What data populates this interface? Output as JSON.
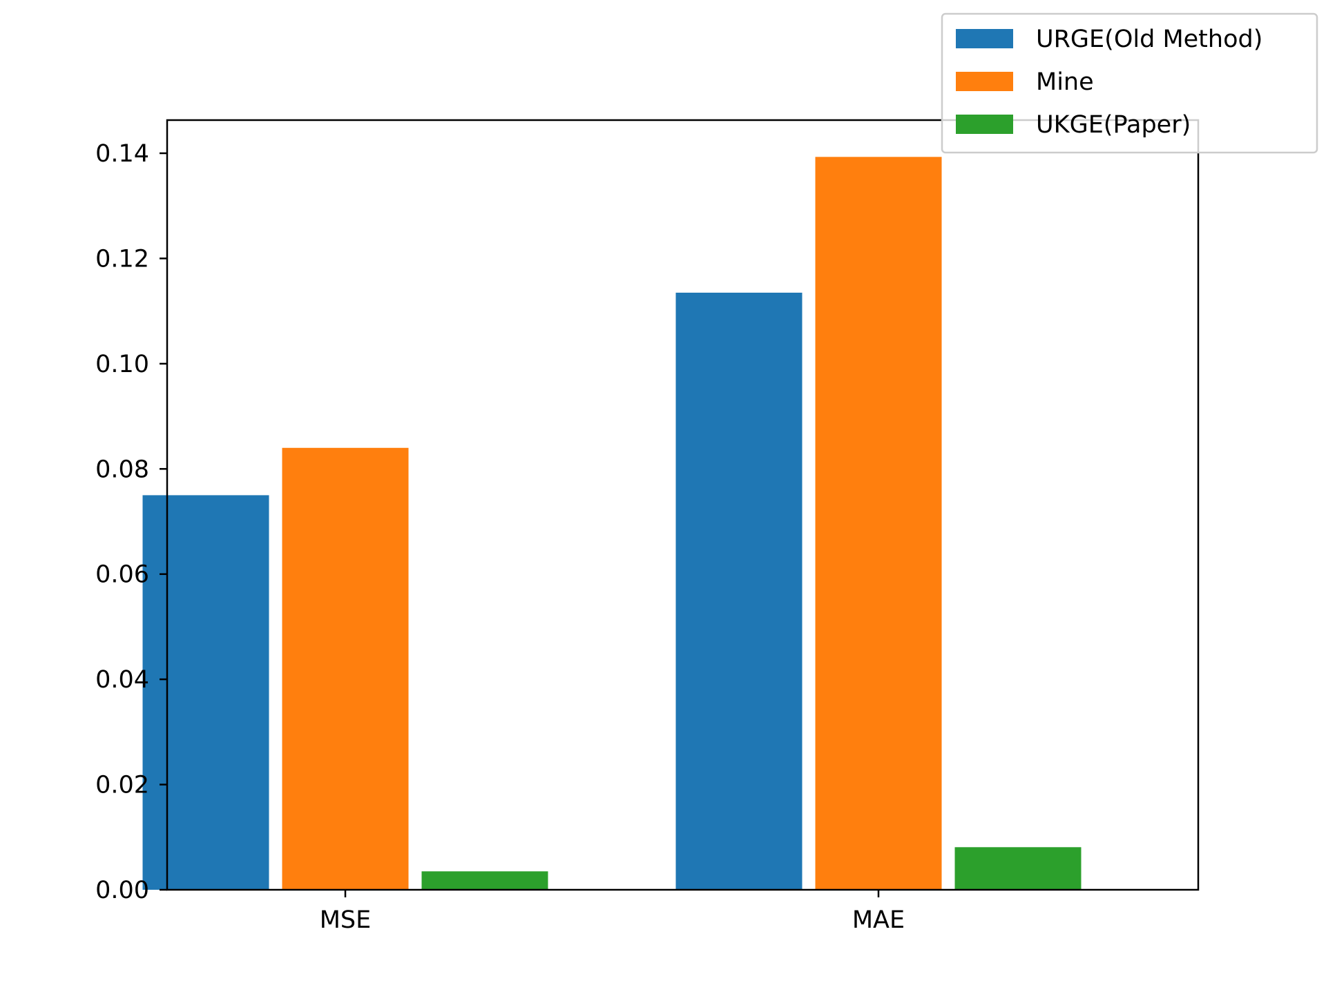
{
  "chart_data": {
    "type": "bar",
    "title": "",
    "xlabel": "",
    "ylabel": "",
    "categories": [
      "MSE",
      "MAE"
    ],
    "ylim": [
      0,
      0.1463
    ],
    "yticks": [
      "0.00",
      "0.02",
      "0.04",
      "0.06",
      "0.08",
      "0.10",
      "0.12",
      "0.14"
    ],
    "grid": false,
    "legend_position": "top-right",
    "series": [
      {
        "name": "URGE(Old Method)",
        "color": "#1f77b4",
        "values": [
          0.075,
          0.1135
        ]
      },
      {
        "name": "Mine",
        "color": "#ff7f0e",
        "values": [
          0.084,
          0.1393
        ]
      },
      {
        "name": "UKGE(Paper)",
        "color": "#2ca02c",
        "values": [
          0.0035,
          0.0081
        ]
      }
    ]
  }
}
